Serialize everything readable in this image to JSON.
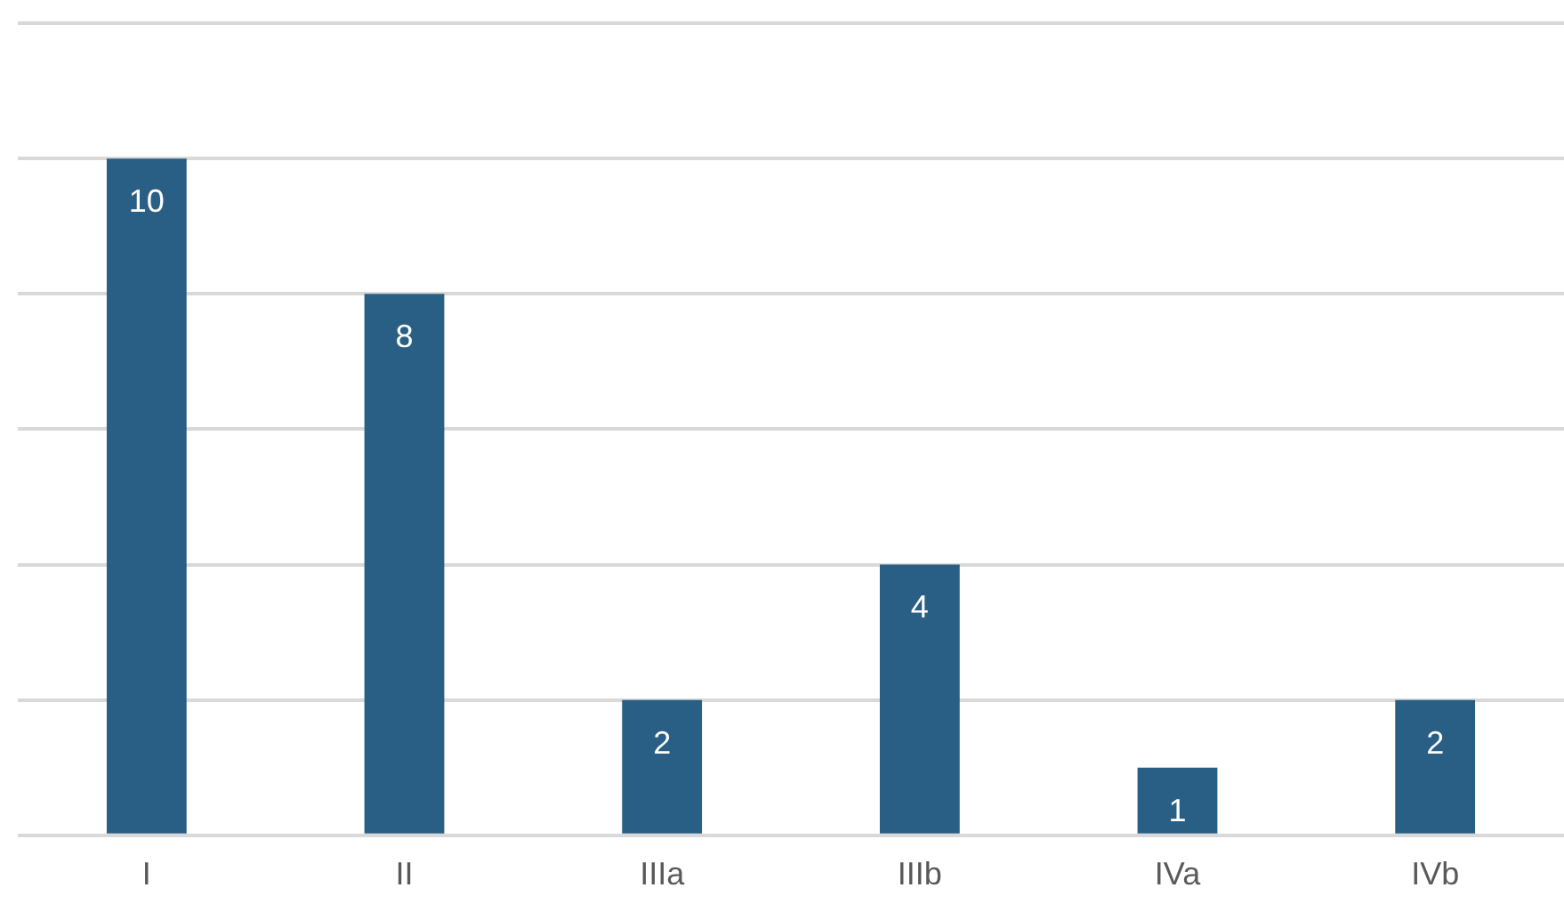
{
  "chart_data": {
    "type": "bar",
    "categories": [
      "I",
      "II",
      "IIIa",
      "IIIb",
      "IVa",
      "IVb"
    ],
    "values": [
      10,
      8,
      2,
      4,
      1,
      2
    ],
    "color": "#2a5f85",
    "ylim": [
      0,
      12
    ],
    "yticks": [
      {
        "value": 0,
        "label": null
      },
      {
        "value": 2,
        "label": null
      },
      {
        "value": 4,
        "label": null
      },
      {
        "value": 6,
        "label": null
      },
      {
        "value": 8,
        "label": null
      },
      {
        "value": 10,
        "label": null
      },
      {
        "value": 12,
        "label": null
      }
    ],
    "grid": "y",
    "tick_labels": "x",
    "data_labels": true
  }
}
